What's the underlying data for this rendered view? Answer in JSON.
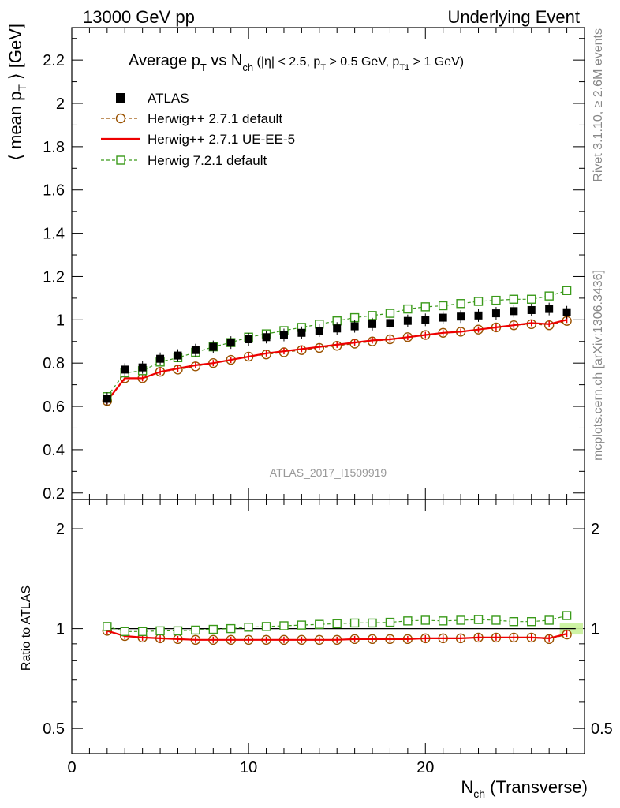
{
  "header": {
    "left": "13000 GeV pp",
    "right": "Underlying Event"
  },
  "side": {
    "rivet": "Rivet 3.1.10, ≥ 2.6M events",
    "mcplots": "mcplots.cern.ch [arXiv:1306.3436]"
  },
  "plot_title": {
    "main": "Average p",
    "sub_T": "T",
    "vs": " vs N",
    "sub_ch": "ch",
    "cuts_1": " (|η| < 2.5, p",
    "cuts_sub1": "T",
    "cuts_2": " > 0.5 GeV, p",
    "cuts_sub2": "T1",
    "cuts_3": " > 1 GeV)"
  },
  "watermark": "ATLAS_2017_I1509919",
  "chart_data": [
    {
      "type": "line",
      "panel": "main",
      "ylabel": "⟨ mean p",
      "ylabel_sub": "T",
      "ylabel_tail": " ⟩ [GeV]",
      "xlabel": "N",
      "xlabel_sub": "ch",
      "xlabel_tail": " (Transverse)",
      "xlim": [
        0,
        29
      ],
      "ylim": [
        0.17,
        2.35
      ],
      "x_ticks": [
        "0",
        "10",
        "20"
      ],
      "y_ticks": [
        "0.2",
        "0.4",
        "0.6",
        "0.8",
        "1",
        "1.2",
        "1.4",
        "1.6",
        "1.8",
        "2",
        "2.2"
      ],
      "legend_position": "top-left",
      "x": [
        2,
        3,
        4,
        5,
        6,
        7,
        8,
        9,
        10,
        11,
        12,
        13,
        14,
        15,
        16,
        17,
        18,
        19,
        20,
        21,
        22,
        23,
        24,
        25,
        26,
        27,
        28
      ],
      "series": [
        {
          "name": "ATLAS",
          "color": "#000000",
          "style": "filled-square",
          "values": [
            0.635,
            0.77,
            0.78,
            0.82,
            0.835,
            0.86,
            0.875,
            0.895,
            0.91,
            0.92,
            0.93,
            0.94,
            0.95,
            0.96,
            0.97,
            0.98,
            0.985,
            0.995,
            1.0,
            1.01,
            1.015,
            1.02,
            1.03,
            1.04,
            1.045,
            1.05,
            1.035
          ]
        },
        {
          "name": "Herwig++ 2.7.1 default",
          "color": "#9a5200",
          "style": "open-circle-dashed",
          "values": [
            0.625,
            0.73,
            0.73,
            0.76,
            0.77,
            0.785,
            0.8,
            0.815,
            0.83,
            0.84,
            0.85,
            0.86,
            0.87,
            0.88,
            0.89,
            0.9,
            0.91,
            0.92,
            0.93,
            0.94,
            0.945,
            0.955,
            0.965,
            0.975,
            0.98,
            0.975,
            0.995
          ]
        },
        {
          "name": "Herwig++ 2.7.1 UE-EE-5",
          "color": "#ee0000",
          "style": "solid",
          "values": [
            0.625,
            0.73,
            0.73,
            0.76,
            0.775,
            0.79,
            0.8,
            0.815,
            0.83,
            0.845,
            0.855,
            0.865,
            0.875,
            0.885,
            0.895,
            0.905,
            0.91,
            0.92,
            0.93,
            0.94,
            0.945,
            0.955,
            0.965,
            0.975,
            0.985,
            0.98,
            1.0
          ]
        },
        {
          "name": "Herwig 7.2.1 default",
          "color": "#3a9a1a",
          "style": "open-square-dashed",
          "values": [
            0.645,
            0.755,
            0.765,
            0.805,
            0.825,
            0.85,
            0.875,
            0.895,
            0.92,
            0.935,
            0.95,
            0.965,
            0.98,
            0.995,
            1.01,
            1.02,
            1.03,
            1.05,
            1.06,
            1.065,
            1.075,
            1.085,
            1.09,
            1.095,
            1.095,
            1.11,
            1.135
          ]
        }
      ]
    },
    {
      "type": "line",
      "panel": "ratio",
      "ylabel": "Ratio to ATLAS",
      "xlim": [
        0,
        29
      ],
      "ylim": [
        0.42,
        2.45
      ],
      "y_scale": "log",
      "y_ticks": [
        "0.5",
        "1",
        "2"
      ],
      "x": [
        2,
        3,
        4,
        5,
        6,
        7,
        8,
        9,
        10,
        11,
        12,
        13,
        14,
        15,
        16,
        17,
        18,
        19,
        20,
        21,
        22,
        23,
        24,
        25,
        26,
        27,
        28
      ],
      "series": [
        {
          "name": "Herwig++ 2.7.1 default",
          "color": "#9a5200",
          "style": "open-circle-dashed",
          "values": [
            0.985,
            0.95,
            0.94,
            0.935,
            0.93,
            0.925,
            0.925,
            0.925,
            0.925,
            0.925,
            0.925,
            0.925,
            0.925,
            0.925,
            0.93,
            0.93,
            0.93,
            0.93,
            0.935,
            0.935,
            0.935,
            0.94,
            0.94,
            0.94,
            0.94,
            0.93,
            0.96
          ]
        },
        {
          "name": "Herwig++ 2.7.1 UE-EE-5",
          "color": "#ee0000",
          "style": "solid",
          "values": [
            0.985,
            0.95,
            0.94,
            0.935,
            0.93,
            0.925,
            0.925,
            0.925,
            0.925,
            0.925,
            0.925,
            0.925,
            0.925,
            0.925,
            0.93,
            0.93,
            0.93,
            0.93,
            0.935,
            0.935,
            0.935,
            0.94,
            0.94,
            0.94,
            0.94,
            0.935,
            0.965
          ]
        },
        {
          "name": "Herwig 7.2.1 default",
          "color": "#3a9a1a",
          "style": "open-square-dashed",
          "values": [
            1.015,
            0.98,
            0.98,
            0.985,
            0.985,
            0.99,
            0.995,
            1.0,
            1.01,
            1.015,
            1.02,
            1.025,
            1.03,
            1.035,
            1.04,
            1.04,
            1.045,
            1.055,
            1.06,
            1.055,
            1.06,
            1.065,
            1.06,
            1.05,
            1.05,
            1.06,
            1.095
          ]
        }
      ]
    }
  ]
}
